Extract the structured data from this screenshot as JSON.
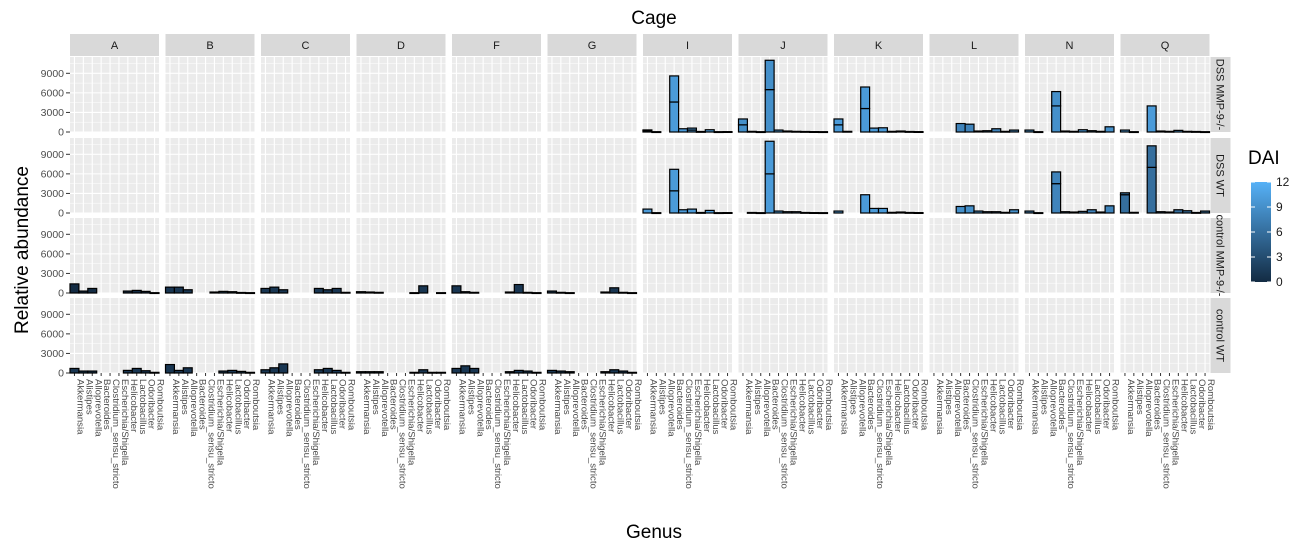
{
  "chart_data": {
    "type": "bar",
    "title": "Cage",
    "xlabel": "Genus",
    "ylabel": "Relative abundance",
    "ylim": [
      0,
      11500
    ],
    "yticks": [
      0,
      3000,
      6000,
      9000
    ],
    "yticklabels": [
      "0",
      "3000",
      "6000",
      "9000"
    ],
    "grid": true,
    "legend": {
      "title": "DAI",
      "placement": "right",
      "min": 0,
      "max": 12,
      "ticks": [
        0,
        3,
        6,
        9,
        12
      ],
      "ticklabels": [
        "0",
        "3",
        "6",
        "9",
        "12"
      ],
      "color_low": "#132B43",
      "color_high": "#56B1F7"
    },
    "cages": [
      "A",
      "B",
      "C",
      "D",
      "F",
      "G",
      "I",
      "J",
      "K",
      "L",
      "N",
      "Q"
    ],
    "rows": [
      "DSS MMP-9-/-",
      "DSS WT",
      "control MMP-9-/-",
      "control WT"
    ],
    "genera": [
      "Akkermansia",
      "Alistipes",
      "Alloprevotella",
      "Bacteroides",
      "Clostridium_sensu_stricto",
      "Escherichia/Shigella",
      "Helicobacter",
      "Lactobacillus",
      "Odoribacter",
      "Romboutsia"
    ],
    "dai": {
      "DSS MMP-9-/-": [
        0,
        0,
        0,
        0,
        0,
        0,
        10,
        9,
        10,
        8,
        9,
        10
      ],
      "DSS WT": [
        0,
        0,
        0,
        0,
        0,
        0,
        10,
        10,
        10,
        9,
        8,
        6
      ],
      "control MMP-9-/-": [
        0,
        1,
        1,
        1,
        1,
        1,
        0,
        0,
        0,
        0,
        0,
        0
      ],
      "control WT": [
        1,
        1,
        1,
        1,
        1,
        1,
        0,
        0,
        0,
        0,
        0,
        0
      ]
    },
    "panels": [
      {
        "row": "DSS MMP-9-/-",
        "cage": "I",
        "values": [
          [
            200,
            120
          ],
          [
            50
          ],
          [
            0
          ],
          [
            4600,
            4000
          ],
          [
            500
          ],
          [
            300,
            300
          ],
          [
            80
          ],
          [
            350
          ],
          [
            50
          ],
          [
            60
          ]
        ]
      },
      {
        "row": "DSS MMP-9-/-",
        "cage": "J",
        "values": [
          [
            1100,
            900
          ],
          [
            100
          ],
          [
            50
          ],
          [
            6500,
            4500
          ],
          [
            300
          ],
          [
            150
          ],
          [
            100
          ],
          [
            80
          ],
          [
            60
          ],
          [
            50
          ]
        ]
      },
      {
        "row": "DSS MMP-9-/-",
        "cage": "K",
        "values": [
          [
            1100,
            900
          ],
          [
            100
          ],
          [
            0
          ],
          [
            3600,
            3300
          ],
          [
            600
          ],
          [
            650
          ],
          [
            100
          ],
          [
            150
          ],
          [
            80
          ],
          [
            60
          ]
        ]
      },
      {
        "row": "DSS MMP-9-/-",
        "cage": "L",
        "values": [
          [
            0
          ],
          [
            0
          ],
          [
            0
          ],
          [
            1300
          ],
          [
            1200
          ],
          [
            150
          ],
          [
            200
          ],
          [
            500
          ],
          [
            100
          ],
          [
            300
          ]
        ]
      },
      {
        "row": "DSS MMP-9-/-",
        "cage": "N",
        "values": [
          [
            300
          ],
          [
            50
          ],
          [
            0
          ],
          [
            4000,
            2200
          ],
          [
            150
          ],
          [
            100
          ],
          [
            350
          ],
          [
            200
          ],
          [
            100
          ],
          [
            800
          ]
        ]
      },
      {
        "row": "DSS MMP-9-/-",
        "cage": "Q",
        "values": [
          [
            300
          ],
          [
            50
          ],
          [
            0
          ],
          [
            4000
          ],
          [
            150
          ],
          [
            100
          ],
          [
            250
          ],
          [
            100
          ],
          [
            80
          ],
          [
            50
          ]
        ]
      },
      {
        "row": "DSS WT",
        "cage": "I",
        "values": [
          [
            600
          ],
          [
            50
          ],
          [
            0
          ],
          [
            3400,
            3300
          ],
          [
            500
          ],
          [
            600
          ],
          [
            80
          ],
          [
            400
          ],
          [
            50
          ],
          [
            60
          ]
        ]
      },
      {
        "row": "DSS WT",
        "cage": "J",
        "values": [
          [
            0
          ],
          [
            80
          ],
          [
            50
          ],
          [
            6000,
            5000
          ],
          [
            300
          ],
          [
            200
          ],
          [
            200
          ],
          [
            80
          ],
          [
            60
          ],
          [
            50
          ]
        ]
      },
      {
        "row": "DSS WT",
        "cage": "K",
        "values": [
          [
            300
          ],
          [
            0
          ],
          [
            0
          ],
          [
            2800
          ],
          [
            700
          ],
          [
            700
          ],
          [
            100
          ],
          [
            150
          ],
          [
            80
          ],
          [
            60
          ]
        ]
      },
      {
        "row": "DSS WT",
        "cage": "L",
        "values": [
          [
            0
          ],
          [
            0
          ],
          [
            0
          ],
          [
            1000
          ],
          [
            1100
          ],
          [
            300
          ],
          [
            200
          ],
          [
            200
          ],
          [
            100
          ],
          [
            500
          ]
        ]
      },
      {
        "row": "DSS WT",
        "cage": "N",
        "values": [
          [
            300
          ],
          [
            50
          ],
          [
            0
          ],
          [
            4500,
            1800
          ],
          [
            200
          ],
          [
            150
          ],
          [
            250
          ],
          [
            500
          ],
          [
            150
          ],
          [
            1100
          ]
        ]
      },
      {
        "row": "DSS WT",
        "cage": "Q",
        "values": [
          [
            2800,
            300
          ],
          [
            100
          ],
          [
            0
          ],
          [
            7000,
            3300
          ],
          [
            200
          ],
          [
            150
          ],
          [
            500
          ],
          [
            350
          ],
          [
            80
          ],
          [
            300
          ]
        ]
      },
      {
        "row": "control MMP-9-/-",
        "cage": "A",
        "values": [
          [
            1400
          ],
          [
            300
          ],
          [
            700
          ],
          [
            0
          ],
          [
            0
          ],
          [
            0
          ],
          [
            300
          ],
          [
            400
          ],
          [
            250
          ],
          [
            50
          ]
        ]
      },
      {
        "row": "control MMP-9-/-",
        "cage": "B",
        "values": [
          [
            900
          ],
          [
            900
          ],
          [
            500
          ],
          [
            0
          ],
          [
            0
          ],
          [
            150
          ],
          [
            250
          ],
          [
            200
          ],
          [
            80
          ],
          [
            50
          ]
        ]
      },
      {
        "row": "control MMP-9-/-",
        "cage": "C",
        "values": [
          [
            700
          ],
          [
            900
          ],
          [
            500
          ],
          [
            0
          ],
          [
            0
          ],
          [
            0
          ],
          [
            700
          ],
          [
            500
          ],
          [
            700
          ],
          [
            100
          ]
        ]
      },
      {
        "row": "control MMP-9-/-",
        "cage": "D",
        "values": [
          [
            200
          ],
          [
            150
          ],
          [
            100
          ],
          [
            0
          ],
          [
            0
          ],
          [
            0
          ],
          [
            50
          ],
          [
            1100
          ],
          [
            0
          ],
          [
            50
          ]
        ]
      },
      {
        "row": "control MMP-9-/-",
        "cage": "F",
        "values": [
          [
            1100
          ],
          [
            200
          ],
          [
            100
          ],
          [
            0
          ],
          [
            0
          ],
          [
            0
          ],
          [
            150
          ],
          [
            1300
          ],
          [
            100
          ],
          [
            50
          ]
        ]
      },
      {
        "row": "control MMP-9-/-",
        "cage": "G",
        "values": [
          [
            300
          ],
          [
            100
          ],
          [
            50
          ],
          [
            0
          ],
          [
            0
          ],
          [
            0
          ],
          [
            150
          ],
          [
            800
          ],
          [
            100
          ],
          [
            50
          ]
        ]
      },
      {
        "row": "control WT",
        "cage": "A",
        "values": [
          [
            700
          ],
          [
            300
          ],
          [
            300
          ],
          [
            0
          ],
          [
            0
          ],
          [
            0
          ],
          [
            400
          ],
          [
            700
          ],
          [
            350
          ],
          [
            100
          ]
        ]
      },
      {
        "row": "control WT",
        "cage": "B",
        "values": [
          [
            1300
          ],
          [
            400
          ],
          [
            800
          ],
          [
            0
          ],
          [
            0
          ],
          [
            0
          ],
          [
            300
          ],
          [
            400
          ],
          [
            250
          ],
          [
            100
          ]
        ]
      },
      {
        "row": "control WT",
        "cage": "C",
        "values": [
          [
            500
          ],
          [
            800
          ],
          [
            1400
          ],
          [
            0
          ],
          [
            0
          ],
          [
            0
          ],
          [
            500
          ],
          [
            700
          ],
          [
            400
          ],
          [
            100
          ]
        ]
      },
      {
        "row": "control WT",
        "cage": "D",
        "values": [
          [
            200
          ],
          [
            200
          ],
          [
            200
          ],
          [
            0
          ],
          [
            0
          ],
          [
            0
          ],
          [
            100
          ],
          [
            500
          ],
          [
            100
          ],
          [
            100
          ]
        ]
      },
      {
        "row": "control WT",
        "cage": "F",
        "values": [
          [
            700
          ],
          [
            1100
          ],
          [
            700
          ],
          [
            0
          ],
          [
            0
          ],
          [
            0
          ],
          [
            200
          ],
          [
            400
          ],
          [
            300
          ],
          [
            100
          ]
        ]
      },
      {
        "row": "control WT",
        "cage": "G",
        "values": [
          [
            400
          ],
          [
            300
          ],
          [
            200
          ],
          [
            0
          ],
          [
            0
          ],
          [
            0
          ],
          [
            200
          ],
          [
            500
          ],
          [
            300
          ],
          [
            100
          ]
        ]
      }
    ]
  }
}
